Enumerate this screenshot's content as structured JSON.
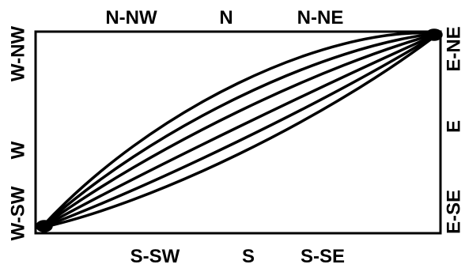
{
  "labels": {
    "top": [
      "N-NW",
      "N",
      "N-NE"
    ],
    "bottom": [
      "S-SW",
      "S",
      "S-SE"
    ],
    "left": [
      "W-NW",
      "W",
      "W-SW"
    ],
    "right": [
      "E-NE",
      "E",
      "E-SE"
    ]
  },
  "colors": {
    "ink": "#000000",
    "background": "#ffffff"
  },
  "curve_count": 6
}
